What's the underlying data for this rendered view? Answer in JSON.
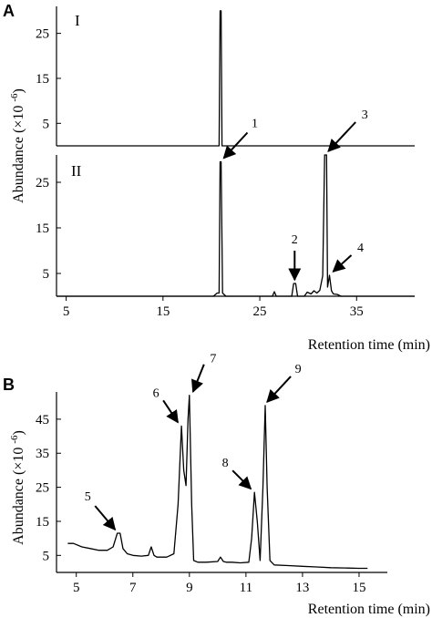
{
  "figure": {
    "panel_labels": [
      "A",
      "B"
    ],
    "sub_labels": [
      "I",
      "II"
    ]
  },
  "chart_data": [
    {
      "panel": "A-I",
      "type": "line",
      "xlim": [
        4,
        41
      ],
      "ylim": [
        0,
        31
      ],
      "yticks": [
        5,
        15,
        25
      ],
      "ylabel": "Abundance (×10-6)",
      "series": [
        {
          "x": [
            4,
            20.8,
            20.9,
            21.0,
            21.1,
            41
          ],
          "y": [
            0,
            0,
            30,
            30,
            0,
            0
          ]
        }
      ]
    },
    {
      "panel": "A-II",
      "type": "line",
      "xlim": [
        4,
        41
      ],
      "ylim": [
        0,
        31
      ],
      "xticks": [
        5,
        15,
        25,
        35
      ],
      "yticks": [
        5,
        15,
        25
      ],
      "xlabel": "Retention time (min)",
      "ylabel": "Abundance (×10-6)",
      "peak_labels": [
        {
          "id": "1",
          "x": 20.9,
          "y": 29.5
        },
        {
          "id": "2",
          "x": 28.6,
          "y": 2.8
        },
        {
          "id": "3",
          "x": 31.7,
          "y": 31
        },
        {
          "id": "4",
          "x": 32.2,
          "y": 4.6
        }
      ],
      "series": [
        {
          "x": [
            4,
            20.2,
            20.6,
            20.8,
            20.9,
            21.0,
            21.15,
            21.5,
            26.3,
            26.5,
            26.7,
            28.3,
            28.5,
            28.7,
            28.9,
            29.6,
            29.9,
            30.3,
            30.6,
            30.9,
            31.2,
            31.5,
            31.7,
            31.9,
            32.0,
            32.2,
            32.4,
            32.6,
            33.0,
            33.4,
            41
          ],
          "y": [
            0,
            0,
            0.7,
            0.7,
            29.5,
            29.5,
            0.7,
            0,
            0,
            1.0,
            0,
            0,
            2.8,
            2.8,
            0,
            0,
            0.9,
            0.5,
            1.2,
            0.7,
            1.3,
            4.5,
            31,
            31,
            2.0,
            4.6,
            1.2,
            0.5,
            0.4,
            0,
            0
          ]
        }
      ]
    },
    {
      "panel": "B",
      "type": "line",
      "xlim": [
        4.3,
        16
      ],
      "ylim": [
        0,
        53
      ],
      "xticks": [
        5,
        7,
        9,
        11,
        13,
        15
      ],
      "yticks": [
        5,
        15,
        25,
        35,
        45
      ],
      "xlabel": "Retention time (min)",
      "ylabel": "Abundance (×10-6)",
      "peak_labels": [
        {
          "id": "5",
          "x": 6.5,
          "y": 11.5
        },
        {
          "id": "6",
          "x": 8.72,
          "y": 43
        },
        {
          "id": "7",
          "x": 9.0,
          "y": 52
        },
        {
          "id": "8",
          "x": 11.3,
          "y": 23.5
        },
        {
          "id": "9",
          "x": 11.62,
          "y": 49
        }
      ],
      "series": [
        {
          "x": [
            4.7,
            4.9,
            5.2,
            5.5,
            5.8,
            6.1,
            6.3,
            6.45,
            6.55,
            6.65,
            6.8,
            7.0,
            7.3,
            7.55,
            7.65,
            7.75,
            7.85,
            8.0,
            8.2,
            8.45,
            8.6,
            8.72,
            8.8,
            8.88,
            8.95,
            9.0,
            9.08,
            9.15,
            9.3,
            9.6,
            10.0,
            10.1,
            10.2,
            10.3,
            10.5,
            10.8,
            11.1,
            11.2,
            11.3,
            11.4,
            11.5,
            11.6,
            11.68,
            11.75,
            11.85,
            12.0,
            12.5,
            13.0,
            13.5,
            14.0,
            14.5,
            15.0,
            15.3
          ],
          "y": [
            8.5,
            8.5,
            7.5,
            7.0,
            6.5,
            6.5,
            7.5,
            11.5,
            11.5,
            7.0,
            5.5,
            5.0,
            4.8,
            5.0,
            7.5,
            5.0,
            4.5,
            4.5,
            4.5,
            5.5,
            20,
            43,
            30,
            25.5,
            45,
            52,
            20,
            3.5,
            3.0,
            3.0,
            3.2,
            4.5,
            3.2,
            3.0,
            3.0,
            2.8,
            3.0,
            10,
            23.5,
            15,
            3.5,
            25,
            49,
            25,
            3.5,
            2.2,
            2.0,
            1.8,
            1.6,
            1.4,
            1.3,
            1.2,
            1.2
          ]
        }
      ]
    }
  ]
}
